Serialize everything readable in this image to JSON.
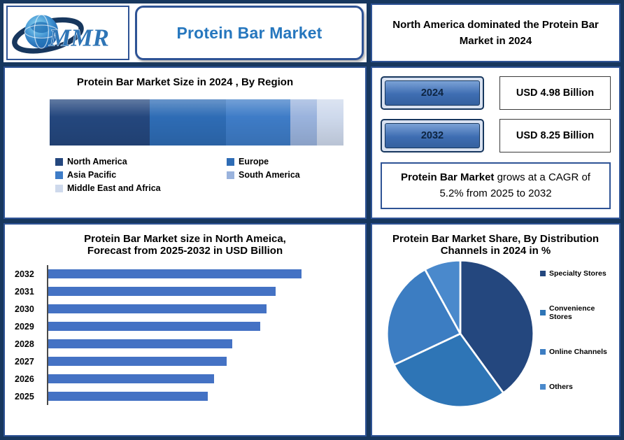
{
  "header": {
    "logo_text": "MMR",
    "title": "Protein Bar Market",
    "headline": "North America dominated the Protein Bar Market in 2024"
  },
  "stats": {
    "rows": [
      {
        "year": "2024",
        "value": "USD 4.98 Billion"
      },
      {
        "year": "2032",
        "value": "USD 8.25 Billion"
      }
    ],
    "cagr_lead": "Protein Bar Market",
    "cagr_text": " grows at a CAGR of 5.2% from 2025 to 2032"
  },
  "chart_data": [
    {
      "id": "region",
      "type": "bar",
      "variant": "stacked-horizontal",
      "title": "Protein Bar Market Size in 2024 , By Region",
      "series": [
        {
          "name": "North America",
          "value": 34,
          "color": "#24477E"
        },
        {
          "name": "Europe",
          "value": 26,
          "color": "#2E6CB5"
        },
        {
          "name": "Asia Pacific",
          "value": 22,
          "color": "#3E7CC7"
        },
        {
          "name": "South America",
          "value": 9,
          "color": "#9AB3DD"
        },
        {
          "name": "Middle East and Africa",
          "value": 9,
          "color": "#CED9EC"
        }
      ],
      "unit": "share of 2024 market, % (visual estimate)",
      "legend_position": "bottom"
    },
    {
      "id": "forecast",
      "type": "bar",
      "orientation": "horizontal",
      "title_lines": [
        "Protein Bar Market size in North Ameica,",
        "Forecast from 2025-2032 in USD Billion"
      ],
      "categories": [
        "2032",
        "2031",
        "2030",
        "2029",
        "2028",
        "2027",
        "2026",
        "2025"
      ],
      "values": [
        8.25,
        7.4,
        7.1,
        6.9,
        6.0,
        5.8,
        5.4,
        5.2
      ],
      "xlim": [
        0,
        10
      ],
      "bar_color": "#4472C4",
      "unit": "USD Billion",
      "grid": false
    },
    {
      "id": "share",
      "type": "pie",
      "title": "Protein Bar Market Share, By Distribution Channels in 2024 in %",
      "labels": [
        "Specialty Stores",
        "Convenience Stores",
        "Online Channels",
        "Others"
      ],
      "values": [
        40,
        28,
        24,
        8
      ],
      "colors": [
        "#24477E",
        "#2E75B6",
        "#3C7DC2",
        "#4A89CC"
      ],
      "legend_position": "right",
      "start_angle_deg": -90,
      "clockwise": true
    }
  ],
  "colors": {
    "frame": "#17375E",
    "panel_border": "#2E5395",
    "title_blue": "#2677BE"
  }
}
